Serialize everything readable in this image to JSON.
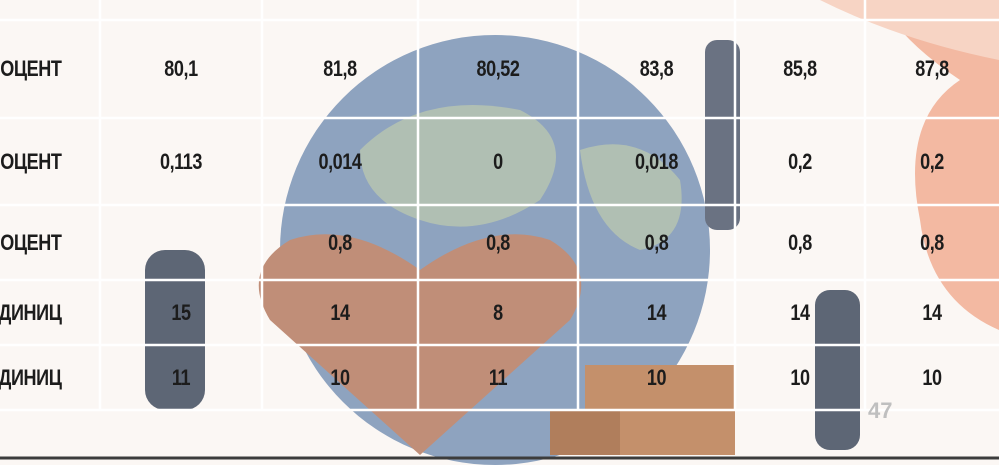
{
  "table": {
    "rows": [
      [
        "ОЦЕНТ",
        "80,1",
        "81,8",
        "80,52",
        "83,8",
        "85,8",
        "87,8"
      ],
      [
        "ОЦЕНТ",
        "0,113",
        "0,014",
        "0",
        "0,018",
        "0,2",
        "0,2"
      ],
      [
        "ОЦЕНТ",
        null,
        "0,8",
        "0,8",
        "0,8",
        "0,8",
        "0,8"
      ],
      [
        "ДИНИЦ",
        "15",
        "14",
        "8",
        "14",
        "14",
        "14"
      ],
      [
        "ДИНИЦ",
        "11",
        "10",
        "11",
        "10",
        "10",
        "10"
      ]
    ]
  },
  "page_number": "47"
}
